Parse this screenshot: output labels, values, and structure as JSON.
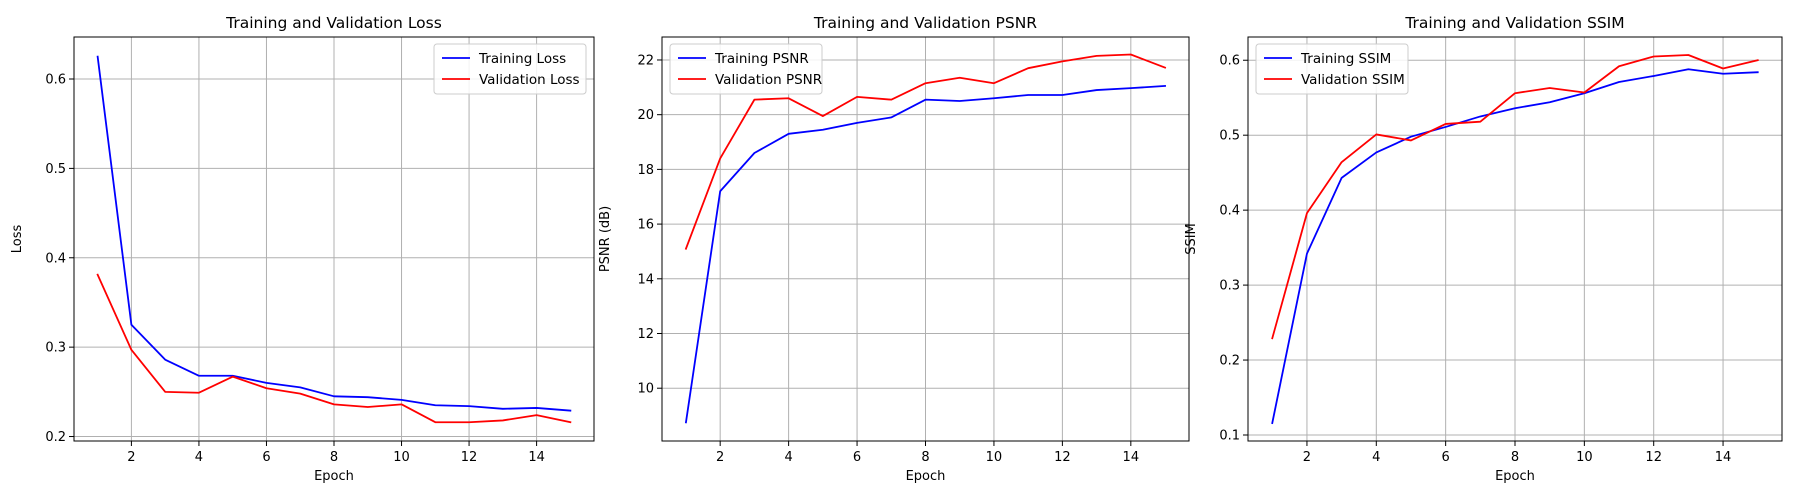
{
  "chart_data": [
    {
      "type": "line",
      "title": "Training and Validation Loss",
      "xlabel": "Epoch",
      "ylabel": "Loss",
      "x": [
        1,
        2,
        3,
        4,
        5,
        6,
        7,
        8,
        9,
        10,
        11,
        12,
        13,
        14,
        15
      ],
      "xlim": [
        0.3,
        15.7
      ],
      "ylim": [
        0.195,
        0.647
      ],
      "xticks": [
        2,
        4,
        6,
        8,
        10,
        12,
        14
      ],
      "yticks": [
        0.2,
        0.3,
        0.4,
        0.5,
        0.6
      ],
      "grid": true,
      "legend_position": "upper right",
      "series": [
        {
          "name": "Training Loss",
          "color": "#0000ff",
          "values": [
            0.625,
            0.325,
            0.286,
            0.268,
            0.268,
            0.26,
            0.255,
            0.245,
            0.244,
            0.241,
            0.235,
            0.234,
            0.231,
            0.232,
            0.229
          ]
        },
        {
          "name": "Validation Loss",
          "color": "#ff0000",
          "values": [
            0.381,
            0.297,
            0.25,
            0.249,
            0.267,
            0.254,
            0.248,
            0.236,
            0.233,
            0.236,
            0.216,
            0.216,
            0.218,
            0.224,
            0.216
          ]
        }
      ]
    },
    {
      "type": "line",
      "title": "Training and Validation PSNR",
      "xlabel": "Epoch",
      "ylabel": "PSNR (dB)",
      "x": [
        1,
        2,
        3,
        4,
        5,
        6,
        7,
        8,
        9,
        10,
        11,
        12,
        13,
        14,
        15
      ],
      "xlim": [
        0.3,
        15.7
      ],
      "ylim": [
        8.07,
        22.84
      ],
      "xticks": [
        2,
        4,
        6,
        8,
        10,
        12,
        14
      ],
      "yticks": [
        10,
        12,
        14,
        16,
        18,
        20,
        22
      ],
      "grid": true,
      "legend_position": "upper left",
      "series": [
        {
          "name": "Training PSNR",
          "color": "#0000ff",
          "values": [
            8.75,
            17.2,
            18.6,
            19.3,
            19.45,
            19.7,
            19.9,
            20.55,
            20.5,
            20.6,
            20.72,
            20.72,
            20.9,
            20.97,
            21.05
          ]
        },
        {
          "name": "Validation PSNR",
          "color": "#ff0000",
          "values": [
            15.1,
            18.4,
            20.55,
            20.6,
            19.95,
            20.65,
            20.55,
            21.15,
            21.35,
            21.15,
            21.7,
            21.95,
            22.15,
            22.2,
            21.72
          ]
        }
      ]
    },
    {
      "type": "line",
      "title": "Training and Validation SSIM",
      "xlabel": "Epoch",
      "ylabel": "SSIM",
      "x": [
        1,
        2,
        3,
        4,
        5,
        6,
        7,
        8,
        9,
        10,
        11,
        12,
        13,
        14,
        15
      ],
      "xlim": [
        0.3,
        15.7
      ],
      "ylim": [
        0.092,
        0.631
      ],
      "xticks": [
        2,
        4,
        6,
        8,
        10,
        12,
        14
      ],
      "yticks": [
        0.1,
        0.2,
        0.3,
        0.4,
        0.5,
        0.6
      ],
      "grid": true,
      "legend_position": "upper left",
      "series": [
        {
          "name": "Training SSIM",
          "color": "#0000ff",
          "values": [
            0.116,
            0.342,
            0.443,
            0.477,
            0.498,
            0.511,
            0.525,
            0.536,
            0.544,
            0.556,
            0.571,
            0.579,
            0.588,
            0.582,
            0.584
          ]
        },
        {
          "name": "Validation SSIM",
          "color": "#ff0000",
          "values": [
            0.229,
            0.396,
            0.464,
            0.501,
            0.493,
            0.515,
            0.518,
            0.556,
            0.563,
            0.557,
            0.592,
            0.605,
            0.607,
            0.589,
            0.6
          ]
        }
      ]
    }
  ]
}
